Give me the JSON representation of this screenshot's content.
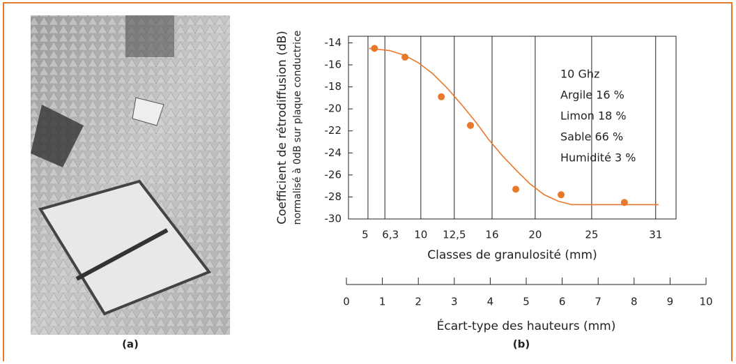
{
  "figure": {
    "panel_labels": [
      "(a)",
      "(b)"
    ]
  },
  "chart_data": {
    "type": "scatter",
    "y_label": [
      "Coefficient de rétrodiffusion (dB)",
      "normalisé à 0dB sur plaque conductrice"
    ],
    "x_label": "Classes de granulosité (mm)",
    "x2_label": "Écart-type des hauteurs (mm)",
    "annotations": [
      "10 Ghz",
      "Argile 16 %",
      "Limon 18 %",
      "Sable 66 %",
      "Humidité 3 %"
    ],
    "color": "#e8782a",
    "points": {
      "x": [
        0.78,
        1.63,
        2.64,
        3.45,
        4.71,
        5.97,
        7.73
      ],
      "y": [
        -14.5,
        -15.3,
        -18.9,
        -21.5,
        -27.3,
        -27.8,
        -28.5
      ]
    },
    "fit": {
      "x": [
        0.63,
        1.2,
        1.6,
        2.0,
        2.4,
        2.8,
        3.2,
        3.6,
        3.96,
        4.35,
        4.73,
        5.1,
        5.5,
        5.9,
        6.27,
        8.68
      ],
      "y": [
        -14.5,
        -14.7,
        -15.1,
        -15.8,
        -16.8,
        -18.1,
        -19.6,
        -21.2,
        -22.8,
        -24.3,
        -25.6,
        -26.8,
        -27.8,
        -28.4,
        -28.7,
        -28.7
      ]
    },
    "ylim": [
      -30,
      -13.4
    ],
    "yticks": [
      -14,
      -16,
      -18,
      -20,
      -22,
      -24,
      -26,
      -28,
      -30
    ],
    "xlim": [
      0,
      10
    ],
    "xticks": [
      0,
      1,
      2,
      3,
      4,
      5,
      6,
      7,
      8,
      9,
      10
    ],
    "class_ticks": [
      5,
      {
        "value": 6.3,
        "label": "6,3"
      },
      10,
      {
        "value": 12.5,
        "label": "12,5"
      },
      16,
      20,
      25,
      31
    ],
    "class_ticks_at": [
      0.6,
      1.07,
      2.07,
      3.0,
      4.05,
      5.25,
      6.82,
      8.6
    ]
  }
}
